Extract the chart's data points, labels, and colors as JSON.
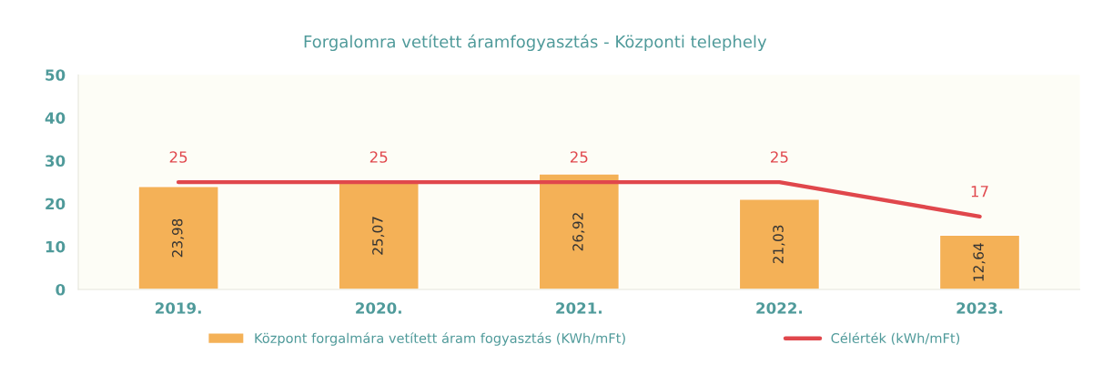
{
  "chart_data": {
    "type": "bar",
    "title": "Forgalomra vetített áramfogyasztás - Központi telephely",
    "categories": [
      "2019.",
      "2020.",
      "2021.",
      "2022.",
      "2023."
    ],
    "series": [
      {
        "name": "Központ forgalmára vetített áram fogyasztás (KWh/mFt)",
        "color": "#f4b157",
        "values": [
          23.98,
          25.07,
          26.92,
          21.03,
          12.64
        ],
        "value_labels": [
          "23,98",
          "25,07",
          "26,92",
          "21,03",
          "12,64"
        ]
      },
      {
        "name": "Célérték (kWh/mFt)",
        "type": "line",
        "color": "#e0474c",
        "values": [
          25,
          25,
          25,
          25,
          17
        ],
        "value_labels": [
          "25",
          "25",
          "25",
          "25",
          "17"
        ]
      }
    ],
    "ylim": [
      0,
      50
    ],
    "yticks": [
      0,
      10,
      20,
      30,
      40,
      50
    ],
    "legend": "bottom"
  }
}
